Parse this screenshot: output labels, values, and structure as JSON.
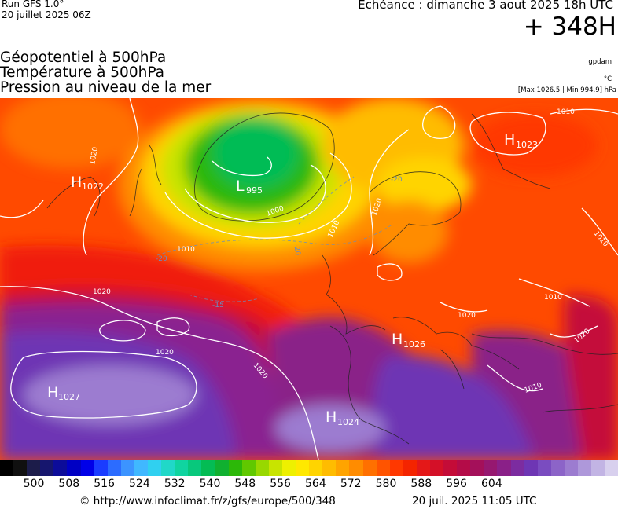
{
  "header": {
    "run": "Run GFS 1.0°",
    "run_date": "20 juillet 2025 06Z",
    "echeance": "Echéance : dimanche 3 aout 2025 18h UTC",
    "forecast_hour": "+ 348H"
  },
  "fields": [
    "Géopotentiel à 500hPa",
    "Température à 500hPa",
    "Pression au niveau de la mer"
  ],
  "source_tag": "gpdam",
  "temp_unit": "°C",
  "pressure_range": "[Max 1026.5 | Min 994.9] hPa",
  "map": {
    "centers": [
      {
        "type": "H",
        "value": "1022"
      },
      {
        "type": "L",
        "value": "995"
      },
      {
        "type": "H",
        "value": "1023"
      },
      {
        "type": "H",
        "value": "1026"
      },
      {
        "type": "H",
        "value": "1027"
      },
      {
        "type": "H",
        "value": "1024"
      }
    ],
    "isobar_labels": [
      "1020",
      "1010",
      "1000",
      "1010",
      "1020",
      "1010",
      "1010",
      "1020",
      "1020",
      "1020",
      "1010",
      "1010",
      "1020",
      "1020"
    ],
    "temp_labels": [
      "-20",
      "-20",
      "-20",
      "-15"
    ]
  },
  "scale": {
    "ticks": [
      "500",
      "508",
      "516",
      "524",
      "532",
      "540",
      "548",
      "556",
      "564",
      "572",
      "580",
      "588",
      "596",
      "604"
    ],
    "colors": [
      "#000000",
      "#101010",
      "#1c1c4a",
      "#16166e",
      "#0c0c9a",
      "#0000c4",
      "#0000e8",
      "#1a3cff",
      "#2c6cff",
      "#3c94ff",
      "#40b8ff",
      "#30d0f0",
      "#20d8c8",
      "#10d4a0",
      "#08c87c",
      "#04bc54",
      "#10b030",
      "#2cb808",
      "#60c800",
      "#98d800",
      "#c8e400",
      "#eef000",
      "#ffe800",
      "#ffd400",
      "#ffbc00",
      "#ffa400",
      "#ff8c00",
      "#ff7000",
      "#ff5400",
      "#ff3800",
      "#f42400",
      "#e41818",
      "#d41028",
      "#c40c38",
      "#b40c48",
      "#a4105a",
      "#961870",
      "#8a2088",
      "#7c2ca0",
      "#6e36b4",
      "#7a4cc0",
      "#8c64c8",
      "#9c7cd0",
      "#ae98da",
      "#c2b4e4",
      "#d8d0ee"
    ]
  },
  "credit": {
    "url": "© http://www.infoclimat.fr/z/gfs/europe/500/348",
    "date": "20 juil. 2025 11:05 UTC"
  }
}
